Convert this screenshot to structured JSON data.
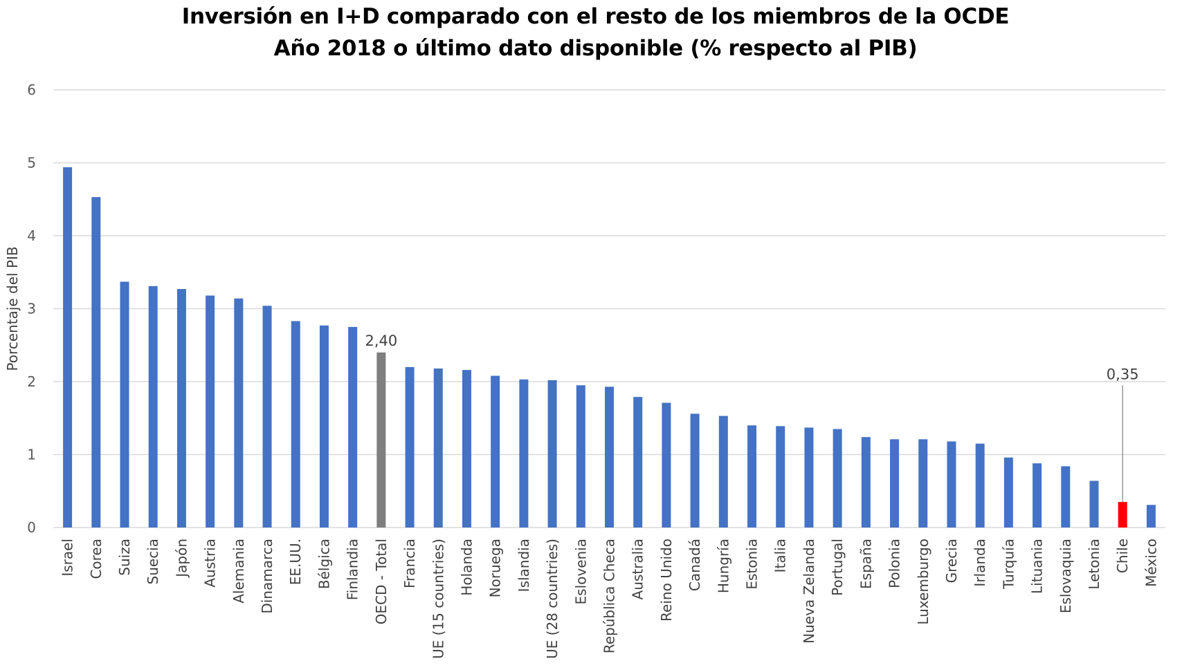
{
  "chart_data": {
    "type": "bar",
    "title": "Inversión en I+D comparado con el resto de los miembros de la OCDE",
    "subtitle": "Año 2018 o último dato disponible (% respecto al PIB)",
    "ylabel": "Porcentaje del PIB",
    "xlabel": "",
    "ylim": [
      0,
      6
    ],
    "yticks": [
      "0",
      "1",
      "2",
      "3",
      "4",
      "5",
      "6"
    ],
    "grid": true,
    "legend": "none",
    "categories": [
      "Israel",
      "Corea",
      "Suiza",
      "Suecia",
      "Japón",
      "Austria",
      "Alemania",
      "Dinamarca",
      "EE.UU.",
      "Bélgica",
      "Finlandia",
      "OECD - Total",
      "Francia",
      "UE (15 countries)",
      "Holanda",
      "Noruega",
      "Islandia",
      "UE (28 countries)",
      "Eslovenia",
      "República Checa",
      "Australia",
      "Reino Unido",
      "Canadá",
      "Hungría",
      "Estonia",
      "Italia",
      "Nueva Zelanda",
      "Portugal",
      "España",
      "Polonia",
      "Luxemburgo",
      "Grecia",
      "Irlanda",
      "Turquía",
      "Lituania",
      "Eslovaquia",
      "Letonia",
      "Chile",
      "México"
    ],
    "values": [
      4.94,
      4.53,
      3.37,
      3.31,
      3.27,
      3.18,
      3.14,
      3.04,
      2.83,
      2.77,
      2.75,
      2.4,
      2.2,
      2.18,
      2.16,
      2.08,
      2.03,
      2.02,
      1.95,
      1.93,
      1.79,
      1.71,
      1.56,
      1.53,
      1.4,
      1.39,
      1.37,
      1.35,
      1.24,
      1.21,
      1.21,
      1.18,
      1.15,
      0.96,
      0.88,
      0.84,
      0.64,
      0.35,
      0.31
    ],
    "highlights": [
      {
        "category": "OECD - Total",
        "color": "#7f7f7f",
        "label": "2,40"
      },
      {
        "category": "Chile",
        "color": "#ff0000",
        "label": "0,35"
      }
    ],
    "bar_color": "#4472c4",
    "grid_color": "#d9d9d9"
  }
}
